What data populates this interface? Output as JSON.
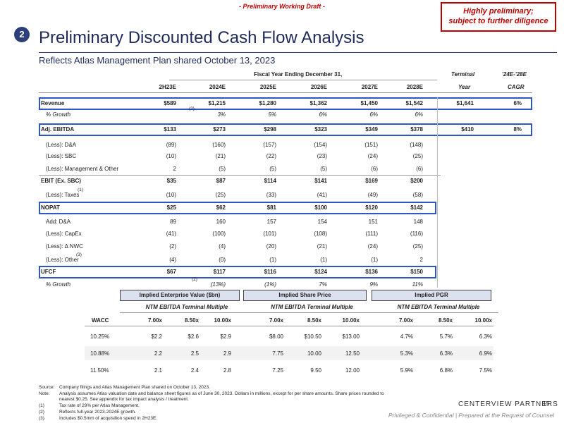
{
  "draft_label": "- Preliminary Working Draft -",
  "warning": [
    "Highly preliminary;",
    "subject to further diligence"
  ],
  "section_number": "2",
  "title": "Preliminary Discounted Cash Flow Analysis",
  "subtitle": "Reflects Atlas Management Plan shared October 13, 2023",
  "header": {
    "fiscal": "Fiscal Year Ending December 31,",
    "terminal": "Terminal",
    "terminal2": "Year",
    "cagr": "'24E-'28E",
    "cagr2": "CAGR",
    "cols": [
      "2H23E",
      "2024E",
      "2025E",
      "2026E",
      "2027E",
      "2028E"
    ]
  },
  "rows": [
    {
      "label": "Revenue",
      "vals": [
        "$589",
        "$1,215",
        "$1,280",
        "$1,362",
        "$1,450",
        "$1,542"
      ],
      "term": "$1,641",
      "cagr": "6%"
    },
    {
      "label": "% Growth",
      "vals": [
        "",
        "3%",
        "5%",
        "6%",
        "6%",
        "6%"
      ],
      "term": "",
      "cagr": ""
    },
    {
      "label": "Adj. EBITDA",
      "vals": [
        "$133",
        "$273",
        "$298",
        "$323",
        "$349",
        "$378"
      ],
      "term": "$410",
      "cagr": "8%"
    },
    {
      "label": "(Less): D&A",
      "vals": [
        "(89)",
        "(160)",
        "(157)",
        "(154)",
        "(151)",
        "(148)"
      ],
      "term": "",
      "cagr": ""
    },
    {
      "label": "(Less): SBC",
      "vals": [
        "(10)",
        "(21)",
        "(22)",
        "(23)",
        "(24)",
        "(25)"
      ],
      "term": "",
      "cagr": ""
    },
    {
      "label": "(Less): Management & Other",
      "vals": [
        "2",
        "(5)",
        "(5)",
        "(5)",
        "(6)",
        "(6)"
      ],
      "term": "",
      "cagr": ""
    },
    {
      "label": "EBIT (Ex. SBC)",
      "vals": [
        "$35",
        "$87",
        "$114",
        "$141",
        "$169",
        "$200"
      ],
      "term": "",
      "cagr": ""
    },
    {
      "label": "(Less): Taxes",
      "vals": [
        "(10)",
        "(25)",
        "(33)",
        "(41)",
        "(49)",
        "(58)"
      ],
      "term": "",
      "cagr": ""
    },
    {
      "label": "NOPAT",
      "vals": [
        "$25",
        "$62",
        "$81",
        "$100",
        "$120",
        "$142"
      ],
      "term": "",
      "cagr": ""
    },
    {
      "label": "Add: D&A",
      "vals": [
        "89",
        "160",
        "157",
        "154",
        "151",
        "148"
      ],
      "term": "",
      "cagr": ""
    },
    {
      "label": "(Less): CapEx",
      "vals": [
        "(41)",
        "(100)",
        "(101)",
        "(108)",
        "(111)",
        "(116)"
      ],
      "term": "",
      "cagr": ""
    },
    {
      "label": "(Less): Δ NWC",
      "vals": [
        "(2)",
        "(4)",
        "(20)",
        "(21)",
        "(24)",
        "(25)"
      ],
      "term": "",
      "cagr": ""
    },
    {
      "label": "(Less): Other",
      "vals": [
        "(4)",
        "(0)",
        "(1)",
        "(1)",
        "(1)",
        "2"
      ],
      "term": "",
      "cagr": ""
    },
    {
      "label": "UFCF",
      "vals": [
        "$67",
        "$117",
        "$116",
        "$124",
        "$136",
        "$150"
      ],
      "term": "",
      "cagr": ""
    },
    {
      "label": "% Growth",
      "vals": [
        "",
        "(13%)",
        "(1%)",
        "7%",
        "9%",
        "11%"
      ],
      "term": "",
      "cagr": ""
    }
  ],
  "fn_marks": {
    "growth1": "(2)",
    "taxes": "(1)",
    "other": "(3)",
    "growth2": "(2)"
  },
  "sens": {
    "boxes": [
      "Implied Enterprise Value ($bn)",
      "Implied Share Price",
      "Implied PGR"
    ],
    "sub": "NTM EBITDA Terminal Multiple",
    "wacc": "WACC",
    "mult": [
      "7.00x",
      "8.50x",
      "10.00x"
    ],
    "rows": [
      {
        "w": "10.25%",
        "ev": [
          "$2.2",
          "$2.6",
          "$2.9"
        ],
        "sp": [
          "$8.00",
          "$10.50",
          "$13.00"
        ],
        "pgr": [
          "4.7%",
          "5.7%",
          "6.3%"
        ]
      },
      {
        "w": "10.88%",
        "ev": [
          "2.2",
          "2.5",
          "2.9"
        ],
        "sp": [
          "7.75",
          "10.00",
          "12.50"
        ],
        "pgr": [
          "5.3%",
          "6.3%",
          "6.9%"
        ]
      },
      {
        "w": "11.50%",
        "ev": [
          "2.1",
          "2.4",
          "2.8"
        ],
        "sp": [
          "7.25",
          "9.50",
          "12.00"
        ],
        "pgr": [
          "5.9%",
          "6.8%",
          "7.5%"
        ]
      }
    ]
  },
  "footnotes": [
    [
      "Source:",
      "Company filings and Atlas Management Plan shared on October 13, 2023."
    ],
    [
      "Note:",
      "Analysis assumes Atlas valuation date and balance sheet figures as of June 30, 2023. Dollars in millions, except for per share amounts. Share prices rounded to"
    ],
    [
      "",
      "nearest $0.25. See appendix for tax impact analysis / treatment."
    ],
    [
      "(1)",
      "Tax rate of 29% per Atlas Management."
    ],
    [
      "(2)",
      "Reflects full-year 2023-2024E growth."
    ],
    [
      "(3)",
      "Includes $0.5mm of acquisition spend in 2H23E."
    ]
  ],
  "logo": "CENTERVIEW PARTNERS",
  "page": "15",
  "confidential": "Privileged & Confidential | Prepared at the Request of Counsel"
}
